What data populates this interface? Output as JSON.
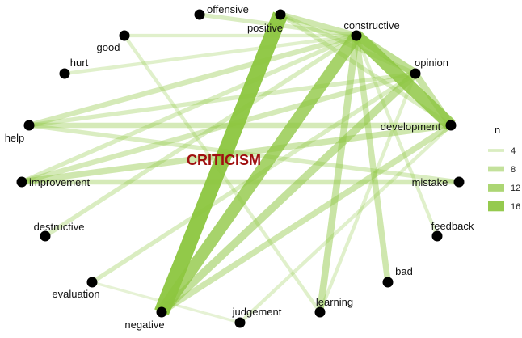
{
  "chart_data": {
    "type": "network",
    "center_label": "CRITICISM",
    "center_color": "#a01010",
    "edge_color": "#8cc63f",
    "node_color": "#000000",
    "nodes": [
      {
        "id": "offensive",
        "label": "offensive"
      },
      {
        "id": "positive",
        "label": "positive"
      },
      {
        "id": "constructive",
        "label": "constructive"
      },
      {
        "id": "good",
        "label": "good"
      },
      {
        "id": "opinion",
        "label": "opinion"
      },
      {
        "id": "hurt",
        "label": "hurt"
      },
      {
        "id": "development",
        "label": "development"
      },
      {
        "id": "help",
        "label": "help"
      },
      {
        "id": "improvement",
        "label": "improvement"
      },
      {
        "id": "mistake",
        "label": "mistake"
      },
      {
        "id": "destructive",
        "label": "destructive"
      },
      {
        "id": "feedback",
        "label": "feedback"
      },
      {
        "id": "evaluation",
        "label": "evaluation"
      },
      {
        "id": "bad",
        "label": "bad"
      },
      {
        "id": "learning",
        "label": "learning"
      },
      {
        "id": "judgement",
        "label": "judgement"
      },
      {
        "id": "negative",
        "label": "negative"
      }
    ],
    "edges": [
      {
        "source": "positive",
        "target": "negative",
        "n": 17
      },
      {
        "source": "constructive",
        "target": "negative",
        "n": 13
      },
      {
        "source": "constructive",
        "target": "development",
        "n": 14
      },
      {
        "source": "constructive",
        "target": "opinion",
        "n": 9
      },
      {
        "source": "opinion",
        "target": "negative",
        "n": 8
      },
      {
        "source": "development",
        "target": "negative",
        "n": 6
      },
      {
        "source": "opinion",
        "target": "development",
        "n": 7
      },
      {
        "source": "positive",
        "target": "constructive",
        "n": 6
      },
      {
        "source": "offensive",
        "target": "constructive",
        "n": 4
      },
      {
        "source": "constructive",
        "target": "help",
        "n": 5
      },
      {
        "source": "constructive",
        "target": "improvement",
        "n": 4
      },
      {
        "source": "constructive",
        "target": "bad",
        "n": 6
      },
      {
        "source": "constructive",
        "target": "learning",
        "n": 7
      },
      {
        "source": "constructive",
        "target": "feedback",
        "n": 3
      },
      {
        "source": "constructive",
        "target": "destructive",
        "n": 4
      },
      {
        "source": "constructive",
        "target": "hurt",
        "n": 3
      },
      {
        "source": "positive",
        "target": "opinion",
        "n": 4
      },
      {
        "source": "positive",
        "target": "development",
        "n": 4
      },
      {
        "source": "opinion",
        "target": "help",
        "n": 4
      },
      {
        "source": "opinion",
        "target": "improvement",
        "n": 5
      },
      {
        "source": "opinion",
        "target": "evaluation",
        "n": 4
      },
      {
        "source": "opinion",
        "target": "learning",
        "n": 3
      },
      {
        "source": "development",
        "target": "help",
        "n": 5
      },
      {
        "source": "development",
        "target": "improvement",
        "n": 6
      },
      {
        "source": "development",
        "target": "judgement",
        "n": 3
      },
      {
        "source": "help",
        "target": "mistake",
        "n": 4
      },
      {
        "source": "improvement",
        "target": "mistake",
        "n": 5
      },
      {
        "source": "good",
        "target": "learning",
        "n": 3
      },
      {
        "source": "evaluation",
        "target": "judgement",
        "n": 2
      },
      {
        "source": "constructive",
        "target": "good",
        "n": 3
      }
    ],
    "legend": {
      "title": "n",
      "position": "right",
      "entries": [
        {
          "label": "4",
          "n": 4
        },
        {
          "label": "8",
          "n": 8
        },
        {
          "label": "12",
          "n": 12
        },
        {
          "label": "16",
          "n": 16
        }
      ]
    }
  }
}
